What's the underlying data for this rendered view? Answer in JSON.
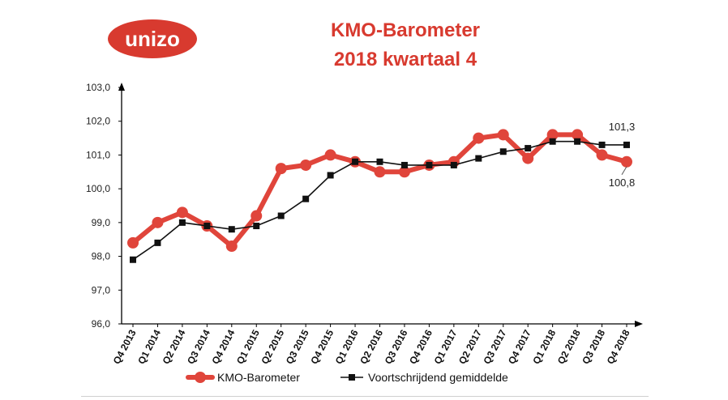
{
  "brand": {
    "logo_text": "unizo",
    "logo_color": "#d83a2f"
  },
  "chart_data": {
    "type": "line",
    "title": "KMO-Barometer",
    "subtitle": "2018 kwartaal 4",
    "xlabel": "",
    "ylabel": "",
    "ylim": [
      96.0,
      103.0
    ],
    "yticks": [
      "96,0",
      "97,0",
      "98,0",
      "99,0",
      "100,0",
      "101,0",
      "102,0",
      "103,0"
    ],
    "categories": [
      "Q4 2013",
      "Q1 2014",
      "Q2 2014",
      "Q3 2014",
      "Q4 2014",
      "Q1 2015",
      "Q2 2015",
      "Q3 2015",
      "Q4 2015",
      "Q1 2016",
      "Q2 2016",
      "Q3 2016",
      "Q4 2016",
      "Q1 2017",
      "Q2 2017",
      "Q3 2017",
      "Q4 2017",
      "Q1 2018",
      "Q2 2018",
      "Q3 2018",
      "Q4 2018"
    ],
    "series": [
      {
        "name": "KMO-Barometer",
        "color": "#e0453b",
        "values": [
          98.4,
          99.0,
          99.3,
          98.9,
          98.3,
          99.2,
          100.6,
          100.7,
          101.0,
          100.8,
          100.5,
          100.5,
          100.7,
          100.8,
          101.5,
          101.6,
          100.9,
          101.6,
          101.6,
          101.0,
          100.8
        ]
      },
      {
        "name": "Voortschrijdend gemiddelde",
        "color": "#111111",
        "values": [
          97.9,
          98.4,
          99.0,
          98.9,
          98.8,
          98.9,
          99.2,
          99.7,
          100.4,
          100.8,
          100.8,
          100.7,
          100.7,
          100.7,
          100.9,
          101.1,
          101.2,
          101.4,
          101.4,
          101.3,
          101.3
        ]
      }
    ],
    "annotations": [
      {
        "text": "101,3",
        "series": 1,
        "index": 20
      },
      {
        "text": "100,8",
        "series": 0,
        "index": 20
      }
    ],
    "legend_position": "bottom",
    "grid": false
  }
}
